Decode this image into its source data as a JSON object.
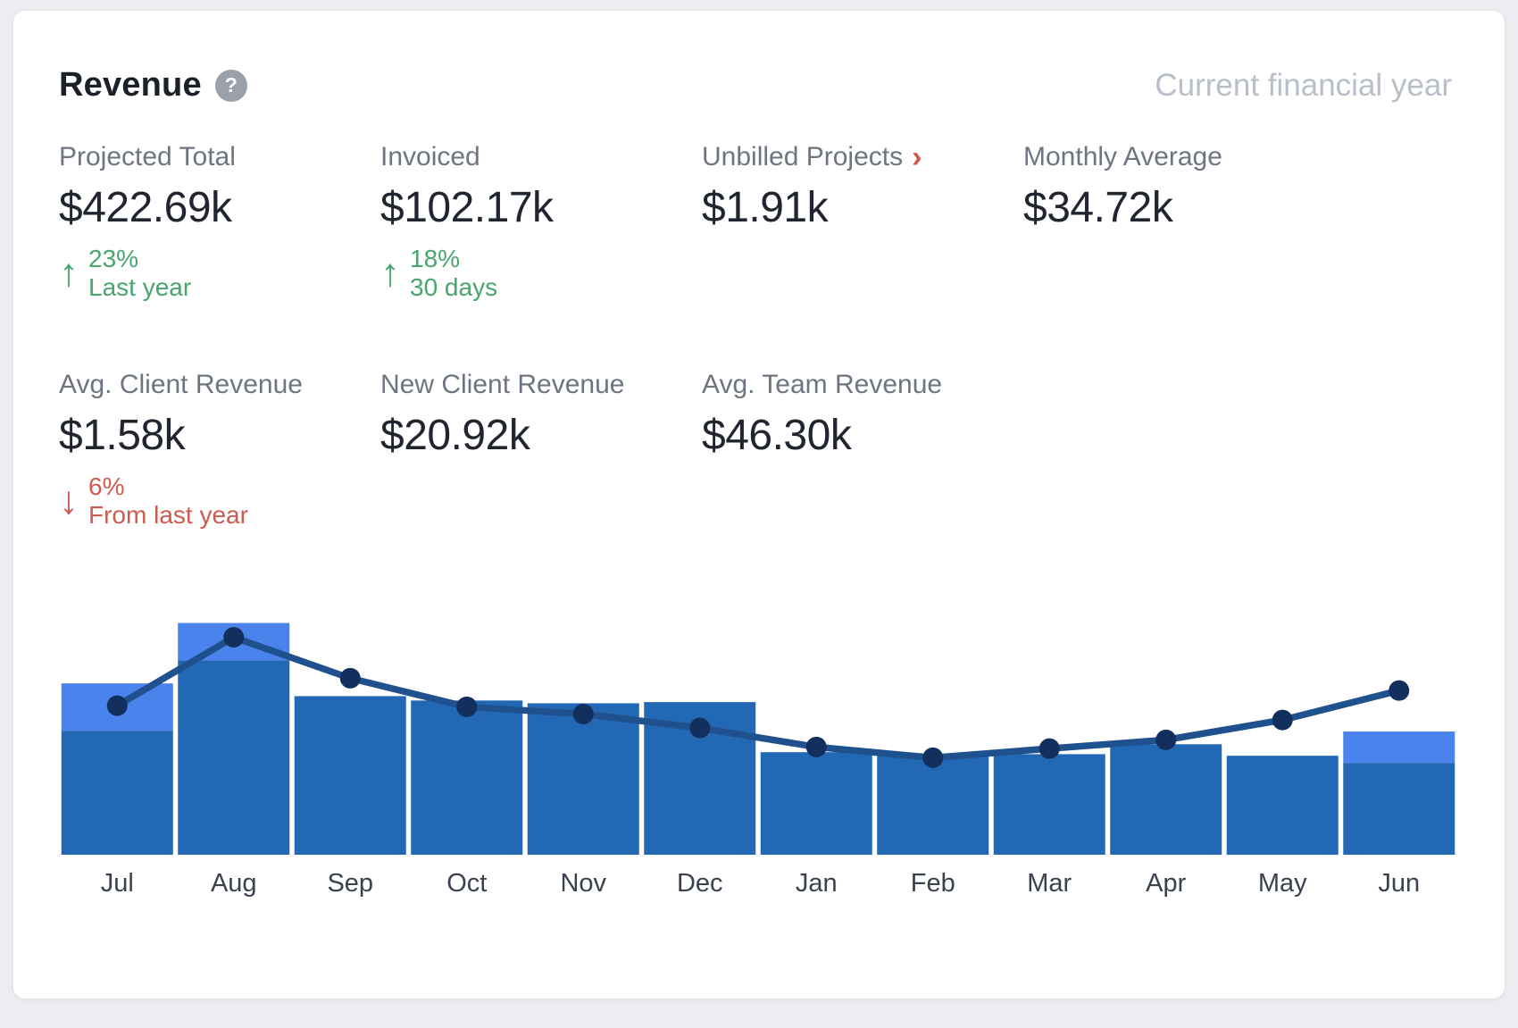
{
  "header": {
    "title": "Revenue",
    "help_icon": "?",
    "period_label": "Current financial year"
  },
  "kpi_rows": [
    [
      {
        "label": "Projected Total",
        "value": "$422.69k",
        "delta": {
          "direction": "up",
          "percent": "23%",
          "caption": "Last year",
          "tone": "positive"
        }
      },
      {
        "label": "Invoiced",
        "value": "$102.17k",
        "delta": {
          "direction": "up",
          "percent": "18%",
          "caption": "30 days",
          "tone": "positive"
        }
      },
      {
        "label": "Unbilled Projects",
        "value": "$1.91k",
        "link_chevron": "›"
      },
      {
        "label": "Monthly Average",
        "value": "$34.72k"
      }
    ],
    [
      {
        "label": "Avg. Client Revenue",
        "value": "$1.58k",
        "delta": {
          "direction": "down",
          "percent": "6%",
          "caption": "From last year",
          "tone": "negative"
        }
      },
      {
        "label": "New Client Revenue",
        "value": "$20.92k"
      },
      {
        "label": "Avg. Team Revenue",
        "value": "$46.30k"
      }
    ]
  ],
  "chart_data": {
    "type": "bar",
    "title": "Monthly revenue, current financial year (bars: revenue $k, line: trend $k)",
    "categories": [
      "Jul",
      "Aug",
      "Sep",
      "Oct",
      "Nov",
      "Dec",
      "Jan",
      "Feb",
      "Mar",
      "Apr",
      "May",
      "Jun"
    ],
    "series": [
      {
        "name": "billed-revenue",
        "type": "bar",
        "stack": "total",
        "values": [
          31.2,
          48.9,
          39.9,
          38.8,
          38.1,
          38.4,
          25.8,
          25.3,
          25.3,
          27.8,
          24.9,
          23.1
        ]
      },
      {
        "name": "additional-revenue",
        "type": "bar",
        "stack": "total",
        "values": [
          11.9,
          9.4,
          0,
          0,
          0,
          0,
          0,
          0,
          0,
          0,
          0,
          7.9
        ]
      },
      {
        "name": "trend-line",
        "type": "line",
        "values": [
          37.5,
          54.7,
          44.4,
          37.2,
          35.4,
          31.9,
          27.1,
          24.4,
          26.7,
          28.9,
          33.9,
          41.3
        ]
      }
    ],
    "unit": "$k",
    "ylim": [
      0,
      71
    ],
    "xlabel": "",
    "ylabel": "",
    "grid": false,
    "legend": false,
    "y_axis_visible": false
  },
  "colors": {
    "positive": "#48a56f",
    "negative": "#ce5b50",
    "chevron": "#d4564a",
    "bar_primary": "#2368b5",
    "bar_secondary": "#4b83ec",
    "line": "#1f518e",
    "point": "#132f5d"
  }
}
